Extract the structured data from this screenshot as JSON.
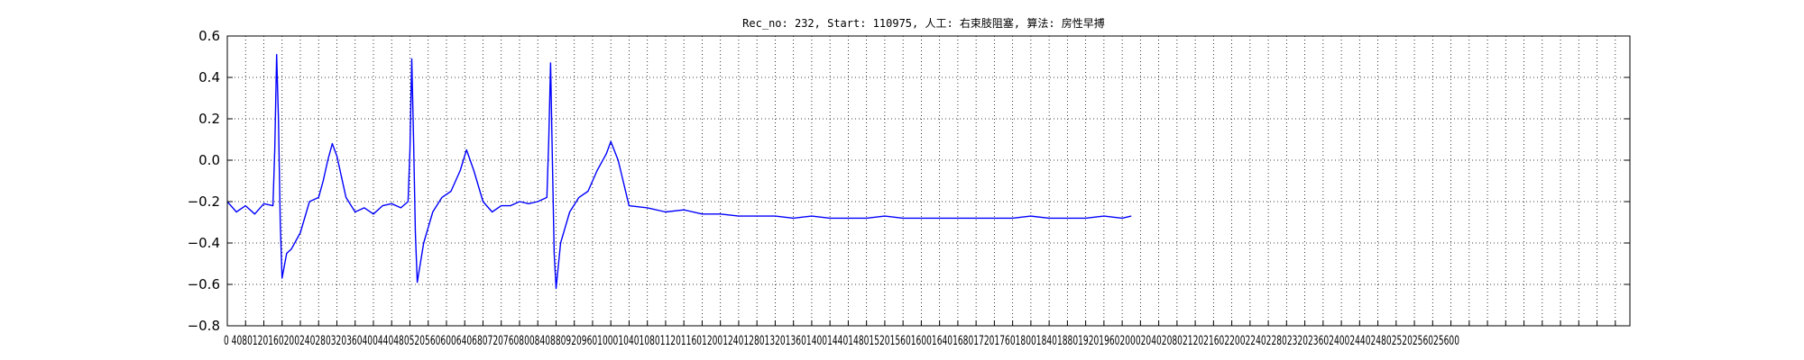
{
  "chart_data": {
    "type": "line",
    "title": "Rec_no: 232, Start: 110975, 人工: 右束肢阻塞, 算法: 房性早搏",
    "xlabel": "",
    "ylabel": "",
    "xlim": [
      0,
      1536
    ],
    "ylim": [
      -0.8,
      0.6
    ],
    "grid": true,
    "grid_style": "dotted",
    "yticks": [
      -0.8,
      -0.6,
      -0.4,
      -0.2,
      0.0,
      0.2,
      0.4,
      0.6
    ],
    "ytick_labels": [
      "−0.8",
      "−0.6",
      "−0.4",
      "−0.2",
      "0.0",
      "0.2",
      "0.4",
      "0.6"
    ],
    "xtick_step": 20,
    "xtick_labels_row": "0 4080120160200240280320360400440480520560600640680720760800840880920960100010401080112011601200124012801320136014001440148015201560160016401680172017601800184018801920196020002040208021202160220022402280232023602400244024802520256025600",
    "series": [
      {
        "color": "#0000ff",
        "samples": 1536,
        "x": [
          0,
          10,
          20,
          30,
          40,
          50,
          52,
          54,
          56,
          58,
          60,
          65,
          70,
          80,
          90,
          100,
          105,
          110,
          115,
          120,
          130,
          140,
          150,
          160,
          170,
          180,
          190,
          198,
          200,
          202,
          204,
          206,
          208,
          215,
          225,
          235,
          245,
          255,
          262,
          270,
          280,
          290,
          300,
          310,
          320,
          330,
          340,
          350,
          352,
          354,
          356,
          358,
          360,
          365,
          375,
          385,
          395,
          405,
          415,
          420,
          428,
          440,
          460,
          480,
          500,
          520,
          540,
          560,
          580,
          600,
          620,
          640,
          660,
          680,
          700,
          720,
          740,
          760,
          780,
          800,
          820,
          840,
          860,
          880,
          900,
          920,
          940,
          960,
          980,
          990
        ],
        "y": [
          -0.2,
          -0.25,
          -0.22,
          -0.26,
          -0.21,
          -0.22,
          0.05,
          0.51,
          0.2,
          -0.3,
          -0.57,
          -0.45,
          -0.43,
          -0.35,
          -0.2,
          -0.18,
          -0.1,
          0.0,
          0.08,
          0.02,
          -0.18,
          -0.25,
          -0.23,
          -0.26,
          -0.22,
          -0.21,
          -0.23,
          -0.2,
          0.05,
          0.49,
          0.1,
          -0.35,
          -0.59,
          -0.4,
          -0.25,
          -0.18,
          -0.15,
          -0.05,
          0.05,
          -0.05,
          -0.2,
          -0.25,
          -0.22,
          -0.22,
          -0.2,
          -0.21,
          -0.2,
          -0.18,
          0.1,
          0.47,
          0.0,
          -0.45,
          -0.62,
          -0.4,
          -0.25,
          -0.18,
          -0.15,
          -0.05,
          0.03,
          0.09,
          0.0,
          -0.22,
          -0.23,
          -0.25,
          -0.24,
          -0.26,
          -0.26,
          -0.27,
          -0.27,
          -0.27,
          -0.28,
          -0.27,
          -0.28,
          -0.28,
          -0.28,
          -0.27,
          -0.28,
          -0.28,
          -0.28,
          -0.28,
          -0.28,
          -0.28,
          -0.28,
          -0.27,
          -0.28,
          -0.28,
          -0.28,
          -0.27,
          -0.28,
          -0.27
        ]
      }
    ]
  }
}
